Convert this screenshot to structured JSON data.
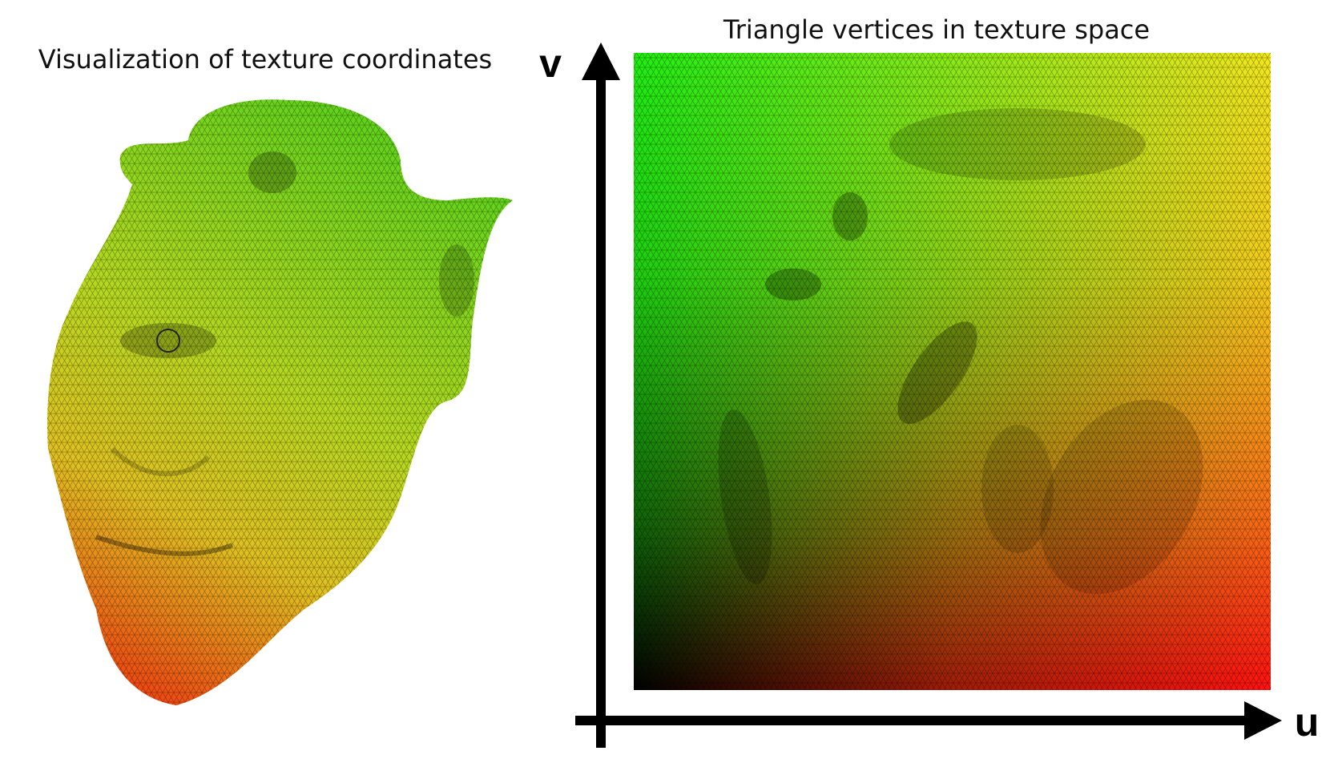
{
  "left_panel": {
    "title": "Visualization of texture coordinates"
  },
  "right_panel": {
    "title": "Triangle vertices in texture space",
    "v_axis_label": "v",
    "u_axis_label": "u"
  }
}
